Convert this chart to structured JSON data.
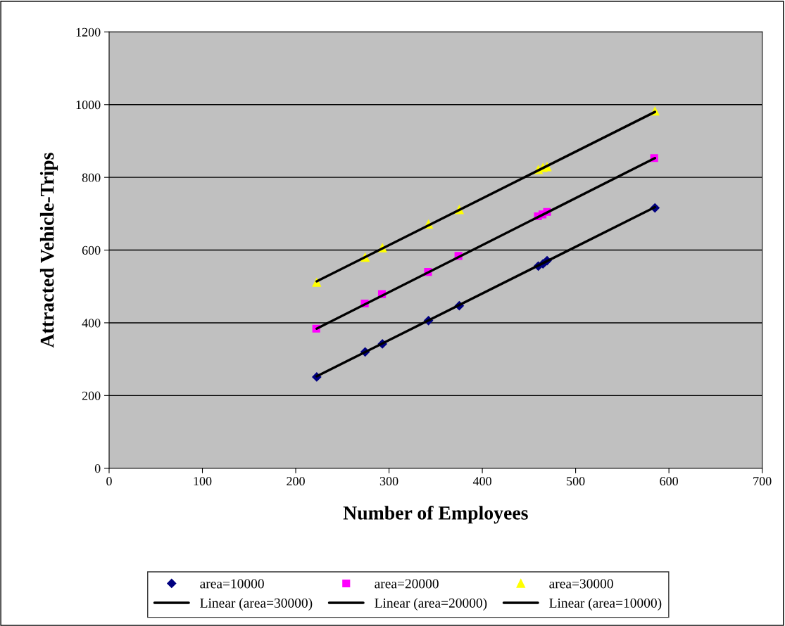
{
  "chart_data": {
    "type": "scatter",
    "xlabel": "Number of Employees",
    "ylabel": "Attracted Vehicle-Trips",
    "xlim": [
      0,
      700
    ],
    "xticks": [
      0,
      100,
      200,
      300,
      400,
      500,
      600,
      700
    ],
    "ylim": [
      0,
      1200
    ],
    "yticks": [
      0,
      200,
      400,
      600,
      800,
      1000,
      1200
    ],
    "grid": "y",
    "legend": "bottom",
    "series": [
      {
        "name": "area=10000",
        "color": "#000080",
        "marker": "diamond",
        "x": [
          222.5,
          274.4,
          292.9,
          342.3,
          375.3,
          460,
          465,
          469.4,
          585
        ],
        "values": [
          251,
          320,
          342,
          406,
          447,
          556,
          562,
          571,
          716
        ]
      },
      {
        "name": "area=20000",
        "color": "#ff00ff",
        "marker": "square",
        "x": [
          222,
          274,
          292.4,
          341.8,
          374.4,
          459.6,
          464.5,
          469.4,
          584.2
        ],
        "values": [
          384,
          453,
          479,
          540,
          584,
          693,
          698,
          705,
          853
        ]
      },
      {
        "name": "area=30000",
        "color": "#ffff00",
        "marker": "triangle",
        "x": [
          222.5,
          274.4,
          292.9,
          342.3,
          375.3,
          460,
          465,
          469.4,
          585
        ],
        "values": [
          511,
          580,
          606,
          671,
          711,
          821,
          827,
          829,
          982
        ]
      },
      {
        "name": "Linear (area=30000)",
        "type": "line",
        "color": "#000000",
        "marker": "none",
        "x": [
          222.5,
          585
        ],
        "values": [
          514,
          980
        ]
      },
      {
        "name": "Linear (area=20000)",
        "type": "line",
        "color": "#000000",
        "marker": "none",
        "x": [
          222.5,
          585
        ],
        "values": [
          384,
          853
        ]
      },
      {
        "name": "Linear (area=10000)",
        "type": "line",
        "color": "#000000",
        "marker": "none",
        "x": [
          222.5,
          585
        ],
        "values": [
          253,
          718
        ]
      }
    ]
  }
}
